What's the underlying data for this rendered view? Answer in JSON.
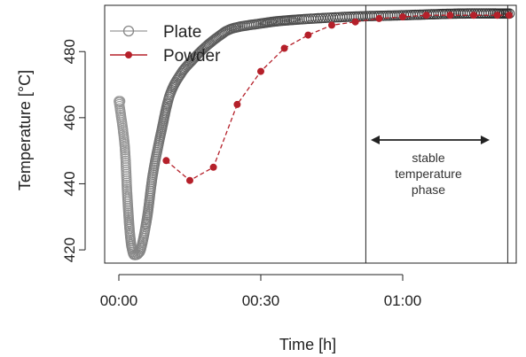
{
  "chart_data": {
    "type": "scatter",
    "xlabel": "Time [h]",
    "ylabel": "Temperature [°C]",
    "xlim": [
      -0.05,
      1.4
    ],
    "ylim": [
      416,
      494
    ],
    "x_ticks": [
      0,
      0.5,
      1.0
    ],
    "x_tick_labels": [
      "00:00",
      "00:30",
      "01:00"
    ],
    "y_ticks": [
      420,
      440,
      460,
      480
    ],
    "y_tick_labels": [
      "420",
      "440",
      "460",
      "480"
    ],
    "grid": false,
    "legend_position": "top-left",
    "series": [
      {
        "name": "Plate",
        "color": "#444444",
        "marker": "open-circle",
        "x": [
          0.0,
          0.02,
          0.03,
          0.04,
          0.05,
          0.06,
          0.07,
          0.08,
          0.1,
          0.12,
          0.15,
          0.18,
          0.22,
          0.26,
          0.3,
          0.35,
          0.4,
          0.5,
          0.6,
          0.8,
          1.0,
          1.2,
          1.38
        ],
        "y": [
          465,
          452,
          436,
          424,
          419,
          418.5,
          419,
          421,
          430,
          443,
          456,
          467,
          473.5,
          477.5,
          481,
          484.5,
          487,
          488.5,
          489.5,
          490.5,
          491,
          491.5,
          491.5
        ]
      },
      {
        "name": "Powder",
        "color": "#b5202a",
        "marker": "filled-circle",
        "x": [
          0.167,
          0.25,
          0.333,
          0.417,
          0.5,
          0.583,
          0.667,
          0.75,
          0.833,
          0.917,
          1.0,
          1.083,
          1.167,
          1.25,
          1.333,
          1.375
        ],
        "y": [
          447,
          441,
          445,
          464,
          474,
          481,
          485,
          488,
          489,
          490,
          490.5,
          491,
          491,
          491,
          491,
          491
        ]
      }
    ],
    "vlines": [
      0.87,
      1.37
    ],
    "annotation": {
      "lines": [
        "stable",
        "temperature",
        "phase"
      ]
    }
  }
}
